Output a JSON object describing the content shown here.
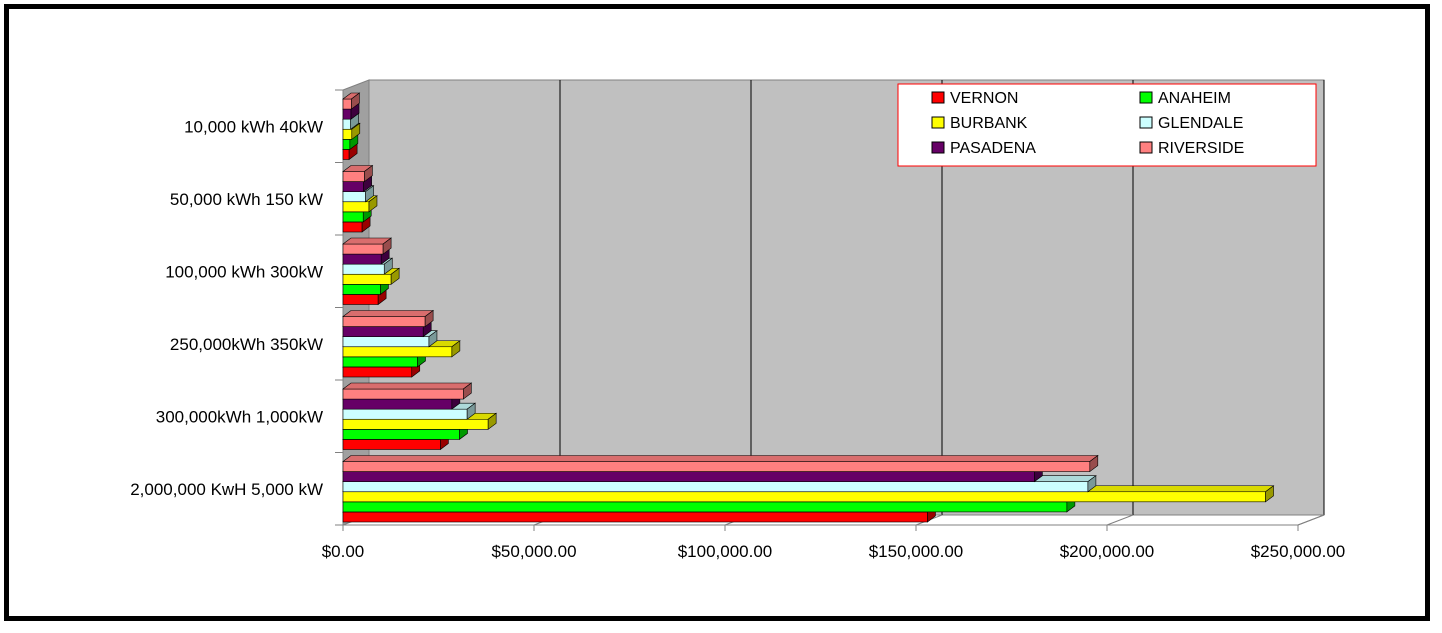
{
  "chart_data": {
    "type": "bar",
    "orientation": "horizontal",
    "three_d": true,
    "categories": [
      "2,000,000 KwH 5,000 kW",
      "300,000kWh 1,000kW",
      "250,000kWh 350kW",
      "100,000 kWh 300kW",
      "50,000 kWh 150 kW",
      "10,000 kWh 40kW"
    ],
    "series": [
      {
        "name": "VERNON",
        "color": "#ff0000",
        "values": [
          153000,
          25500,
          18000,
          9200,
          5000,
          1600
        ]
      },
      {
        "name": "ANAHEIM",
        "color": "#00ff00",
        "values": [
          189500,
          30500,
          19500,
          9800,
          5300,
          1800
        ]
      },
      {
        "name": "BURBANK",
        "color": "#ffff00",
        "values": [
          241500,
          38000,
          28500,
          12600,
          6800,
          2300
        ]
      },
      {
        "name": "GLENDALE",
        "color": "#ccffff",
        "values": [
          195000,
          32500,
          22500,
          10800,
          5900,
          2000
        ]
      },
      {
        "name": "PASADENA",
        "color": "#660066",
        "values": [
          181000,
          28500,
          21000,
          10000,
          5400,
          2100
        ]
      },
      {
        "name": "RIVERSIDE",
        "color": "#ff8080",
        "values": [
          195500,
          31500,
          21500,
          10500,
          5600,
          2200
        ]
      }
    ],
    "xlim": [
      0,
      250000
    ],
    "xticks": [
      "$0.00",
      "$50,000.00",
      "$100,000.00",
      "$150,000.00",
      "$200,000.00",
      "$250,000.00"
    ],
    "grid": true,
    "legend_position": "top-right",
    "legend_columns": 2,
    "plot_background": "#c0c0c0",
    "title": "",
    "xlabel": "",
    "ylabel": ""
  }
}
